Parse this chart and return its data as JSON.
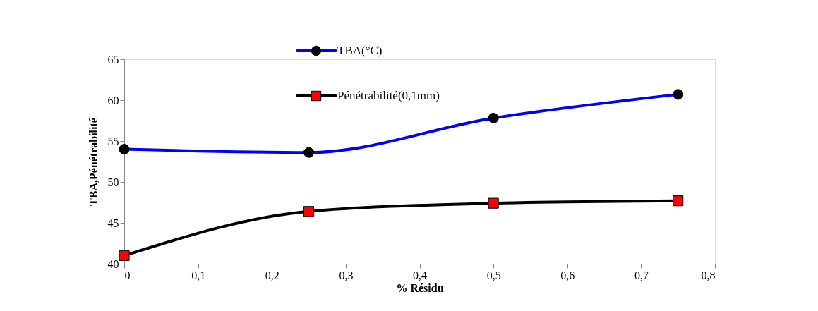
{
  "chart_data": {
    "type": "line",
    "xlabel": "% Résidu",
    "ylabel": "TBA,Pénétrabilité",
    "x": [
      0,
      0.25,
      0.5,
      0.75
    ],
    "series": [
      {
        "name": "TBA(°C)",
        "color": "#0000ff",
        "marker": "circle",
        "values": [
          54,
          53.6,
          57.8,
          60.7
        ]
      },
      {
        "name": "Pénétrabilité(0,1mm)",
        "color": "#000000",
        "marker": "square",
        "values": [
          41,
          46.4,
          47.4,
          47.7
        ]
      }
    ],
    "xlim": [
      0,
      0.8
    ],
    "xticks": [
      0,
      {
        "value": 0.1,
        "label": "0,1"
      },
      {
        "value": 0.2,
        "label": "0,2"
      },
      {
        "value": 0.3,
        "label": "0,3"
      },
      {
        "value": 0.4,
        "label": "0,4"
      },
      {
        "value": 0.5,
        "label": "0,5"
      },
      {
        "value": 0.6,
        "label": "0,6"
      },
      {
        "value": 0.7,
        "label": "0,7"
      },
      {
        "value": 0.8,
        "label": "0,8"
      }
    ],
    "ylim": [
      40,
      65
    ],
    "yticks": [
      40,
      45,
      50,
      55,
      60,
      65
    ],
    "grid": false,
    "legend": "top",
    "line_style": "solid"
  }
}
